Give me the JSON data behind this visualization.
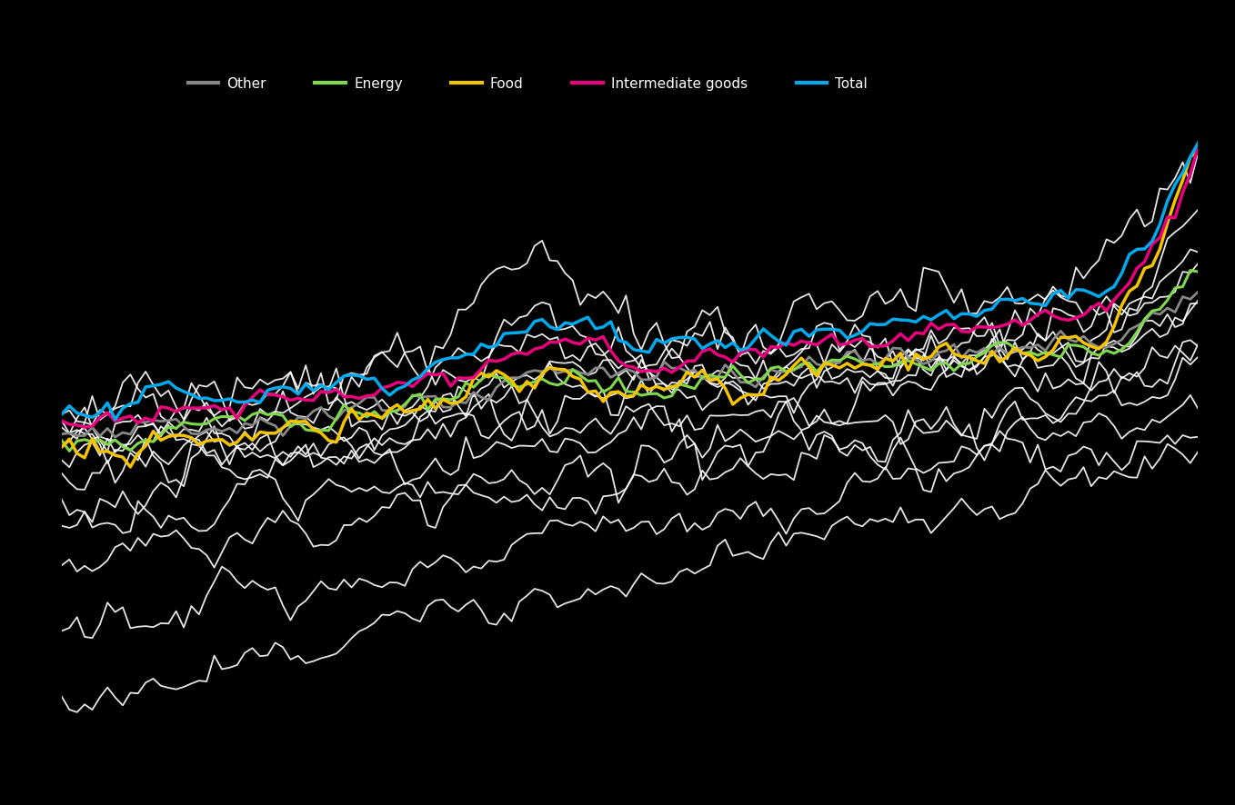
{
  "background_color": "#000000",
  "text_color": "#ffffff",
  "legend_colors": [
    "#888888",
    "#7FD94B",
    "#F5C400",
    "#E8007D",
    "#00AAED"
  ],
  "legend_labels": [
    "Other",
    "Energy",
    "Food",
    "Intermediate goods",
    "Total"
  ],
  "line_color_white": "#ffffff",
  "n_points": 150,
  "seed": 42,
  "highlighted": {
    "gray": {
      "color": "#888888",
      "lw": 2.0
    },
    "green": {
      "color": "#7FD94B",
      "lw": 2.2
    },
    "yellow": {
      "color": "#F5C400",
      "lw": 2.5
    },
    "pink": {
      "color": "#E8007D",
      "lw": 2.5
    },
    "cyan": {
      "color": "#00AAED",
      "lw": 2.5
    }
  }
}
